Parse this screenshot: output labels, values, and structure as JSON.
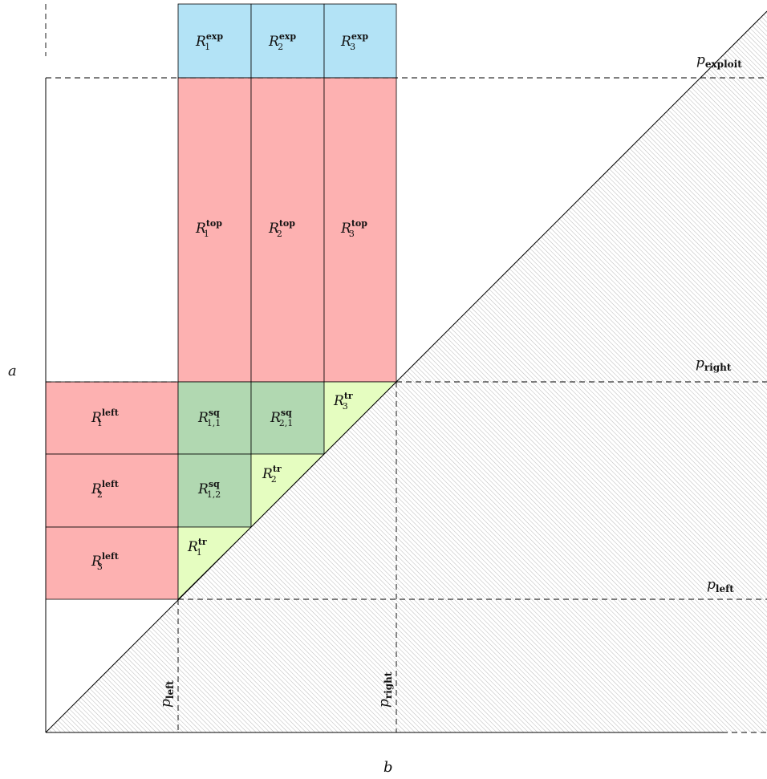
{
  "axes": {
    "x_label": "b",
    "y_label": "a"
  },
  "colors": {
    "exp": "#b3e3f6",
    "red": "#fdb1b1",
    "sq": "#b1d8b1",
    "tr": "#e5fdc0",
    "hatch": "#9a9a9a"
  },
  "regions": {
    "exp": [
      {
        "base": "R",
        "sup": "exp",
        "sub": "1"
      },
      {
        "base": "R",
        "sup": "exp",
        "sub": "2"
      },
      {
        "base": "R",
        "sup": "exp",
        "sub": "3"
      }
    ],
    "top": [
      {
        "base": "R",
        "sup": "top",
        "sub": "1"
      },
      {
        "base": "R",
        "sup": "top",
        "sub": "2"
      },
      {
        "base": "R",
        "sup": "top",
        "sub": "3"
      }
    ],
    "left": [
      {
        "base": "R",
        "sup": "left",
        "sub": "1"
      },
      {
        "base": "R",
        "sup": "left",
        "sub": "2"
      },
      {
        "base": "R",
        "sup": "left",
        "sub": "3"
      }
    ],
    "sq": [
      {
        "base": "R",
        "sup": "sq",
        "sub": "1,1"
      },
      {
        "base": "R",
        "sup": "sq",
        "sub": "2,1"
      },
      {
        "base": "R",
        "sup": "sq",
        "sub": "1,2"
      }
    ],
    "tr": [
      {
        "base": "R",
        "sup": "tr",
        "sub": "1"
      },
      {
        "base": "R",
        "sup": "tr",
        "sub": "2"
      },
      {
        "base": "R",
        "sup": "tr",
        "sub": "3"
      }
    ]
  },
  "thresholds": {
    "p_exploit": {
      "base": "p",
      "sub": "exploit"
    },
    "p_right": {
      "base": "p",
      "sub": "right"
    },
    "p_left": {
      "base": "p",
      "sub": "left"
    },
    "p_left_vertical": {
      "base": "p",
      "sub": "left"
    },
    "p_right_vertical": {
      "base": "p",
      "sub": "right"
    }
  }
}
